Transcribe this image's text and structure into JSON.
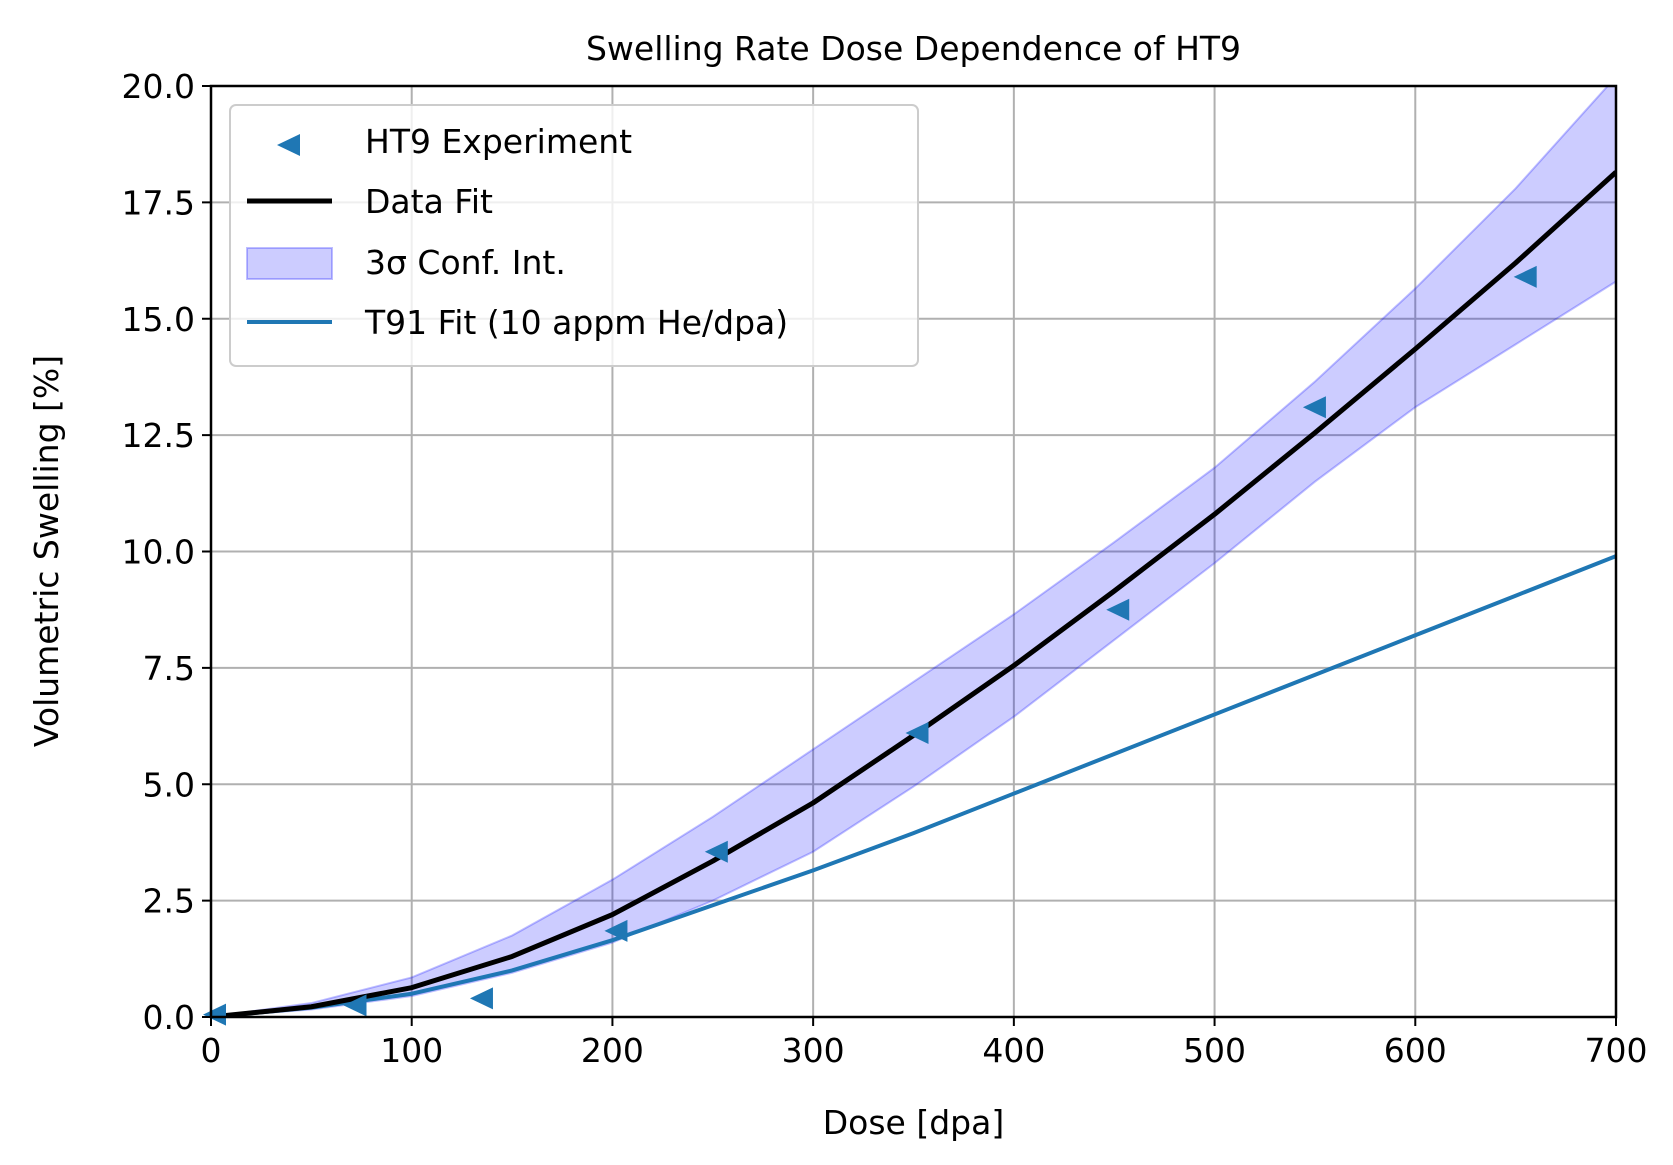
{
  "chart_data": {
    "type": "line",
    "title": "Swelling Rate Dose Dependence of HT9",
    "xlabel": "Dose [dpa]",
    "ylabel": "Volumetric Swelling [%]",
    "xlim": [
      0,
      700
    ],
    "ylim": [
      0,
      20
    ],
    "xticks": [
      "0",
      "100",
      "200",
      "300",
      "400",
      "500",
      "600",
      "700"
    ],
    "yticks": [
      "0.0",
      "2.5",
      "5.0",
      "7.5",
      "10.0",
      "12.5",
      "15.0",
      "17.5",
      "20.0"
    ],
    "grid": true,
    "legend_position": "upper-left",
    "legend": [
      "HT9 Experiment",
      "Data Fit",
      "3σ Conf. Int.",
      "T91 Fit (10 appm He/dpa)"
    ],
    "scatter_series": {
      "name": "HT9 Experiment",
      "marker": "triangle-left",
      "color": "#1f77b4",
      "x": [
        2,
        72,
        135,
        202,
        252,
        352,
        452,
        550,
        655
      ],
      "y": [
        0.05,
        0.25,
        0.4,
        1.85,
        3.55,
        6.1,
        8.75,
        13.1,
        15.9
      ]
    },
    "fit_series": {
      "name": "Data Fit",
      "color": "#000000",
      "x": [
        0,
        50,
        100,
        150,
        200,
        250,
        300,
        350,
        400,
        450,
        500,
        550,
        600,
        650,
        700
      ],
      "y": [
        0,
        0.22,
        0.63,
        1.3,
        2.2,
        3.35,
        4.6,
        6.05,
        7.55,
        9.15,
        10.8,
        12.55,
        14.35,
        16.2,
        18.15
      ]
    },
    "conf_band": {
      "name": "3σ Conf. Int.",
      "color": "#0000ff",
      "x": [
        0,
        50,
        100,
        150,
        200,
        250,
        300,
        350,
        400,
        450,
        500,
        550,
        600,
        650,
        700
      ],
      "upper": [
        0,
        0.3,
        0.85,
        1.75,
        2.95,
        4.3,
        5.75,
        7.2,
        8.65,
        10.2,
        11.8,
        13.65,
        15.65,
        17.8,
        20.2
      ],
      "lower": [
        0,
        0.16,
        0.45,
        0.95,
        1.6,
        2.5,
        3.55,
        4.95,
        6.45,
        8.1,
        9.75,
        11.5,
        13.1,
        14.45,
        15.8
      ]
    },
    "t91_series": {
      "name": "T91 Fit (10 appm He/dpa)",
      "color": "#1f77b4",
      "x": [
        0,
        50,
        100,
        150,
        200,
        250,
        300,
        350,
        400,
        450,
        500,
        550,
        600,
        650,
        700
      ],
      "y": [
        0,
        0.2,
        0.5,
        1.0,
        1.65,
        2.4,
        3.15,
        3.95,
        4.8,
        5.65,
        6.5,
        7.35,
        8.2,
        9.05,
        9.9
      ]
    }
  }
}
